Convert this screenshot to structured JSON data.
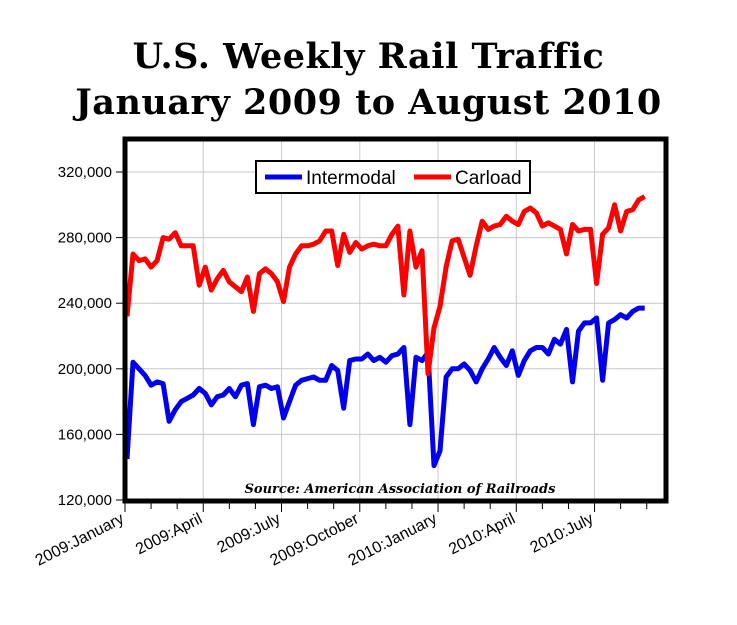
{
  "chart_data": {
    "type": "line",
    "title": "U.S. Weekly Rail Traffic",
    "subtitle": "January 2009 to August 2010",
    "annotation": "Source: American Association of Railroads",
    "x_unit": "week starting January 2009",
    "x_tick_labels": [
      "2009:January",
      "2009:April",
      "2009:July",
      "2009:October",
      "2010:January",
      "2010:April",
      "2010:July"
    ],
    "y_tick_labels": [
      "120,000",
      "160,000",
      "200,000",
      "240,000",
      "280,000",
      "320,000"
    ],
    "ylim": [
      120000,
      330000
    ],
    "grid": true,
    "legend_position": "top-center",
    "series": [
      {
        "name": "Intermodal",
        "color": "#0000ee",
        "values": [
          145000,
          204000,
          200000,
          196000,
          190000,
          192000,
          191000,
          168000,
          175000,
          180000,
          182000,
          184000,
          188000,
          185000,
          178000,
          183000,
          184000,
          188000,
          183000,
          190000,
          191000,
          166000,
          189000,
          190000,
          188000,
          189000,
          170000,
          180000,
          190000,
          193000,
          194000,
          195000,
          193000,
          193000,
          202000,
          199000,
          176000,
          205000,
          206000,
          206000,
          209000,
          205000,
          207000,
          204000,
          208000,
          209000,
          213000,
          166000,
          207000,
          205000,
          210000,
          141000,
          150000,
          195000,
          200000,
          200000,
          203000,
          199000,
          192000,
          200000,
          206000,
          213000,
          207000,
          202000,
          211000,
          196000,
          205000,
          211000,
          213000,
          213000,
          209000,
          218000,
          215000,
          224000,
          192000,
          223000,
          228000,
          228000,
          231000,
          193000,
          228000,
          230000,
          233000,
          231000,
          235000,
          237000,
          237000
        ]
      },
      {
        "name": "Carload",
        "color": "#ff0000",
        "values": [
          232000,
          270000,
          266000,
          267000,
          262000,
          266000,
          280000,
          279000,
          283000,
          275000,
          275000,
          275000,
          251000,
          262000,
          248000,
          255000,
          260000,
          253000,
          250000,
          247000,
          256000,
          235000,
          258000,
          261000,
          258000,
          253000,
          241000,
          262000,
          270000,
          275000,
          275000,
          276000,
          278000,
          284000,
          284000,
          263000,
          282000,
          271000,
          277000,
          273000,
          275000,
          276000,
          275000,
          275000,
          282000,
          287000,
          245000,
          284000,
          262000,
          272000,
          197000,
          225000,
          238000,
          262000,
          278000,
          279000,
          268000,
          257000,
          275000,
          290000,
          285000,
          287000,
          288000,
          293000,
          290000,
          288000,
          296000,
          298000,
          295000,
          287000,
          289000,
          287000,
          285000,
          270000,
          288000,
          284000,
          285000,
          285000,
          252000,
          282000,
          286000,
          300000,
          284000,
          296000,
          297000,
          303000,
          305000
        ]
      }
    ]
  }
}
